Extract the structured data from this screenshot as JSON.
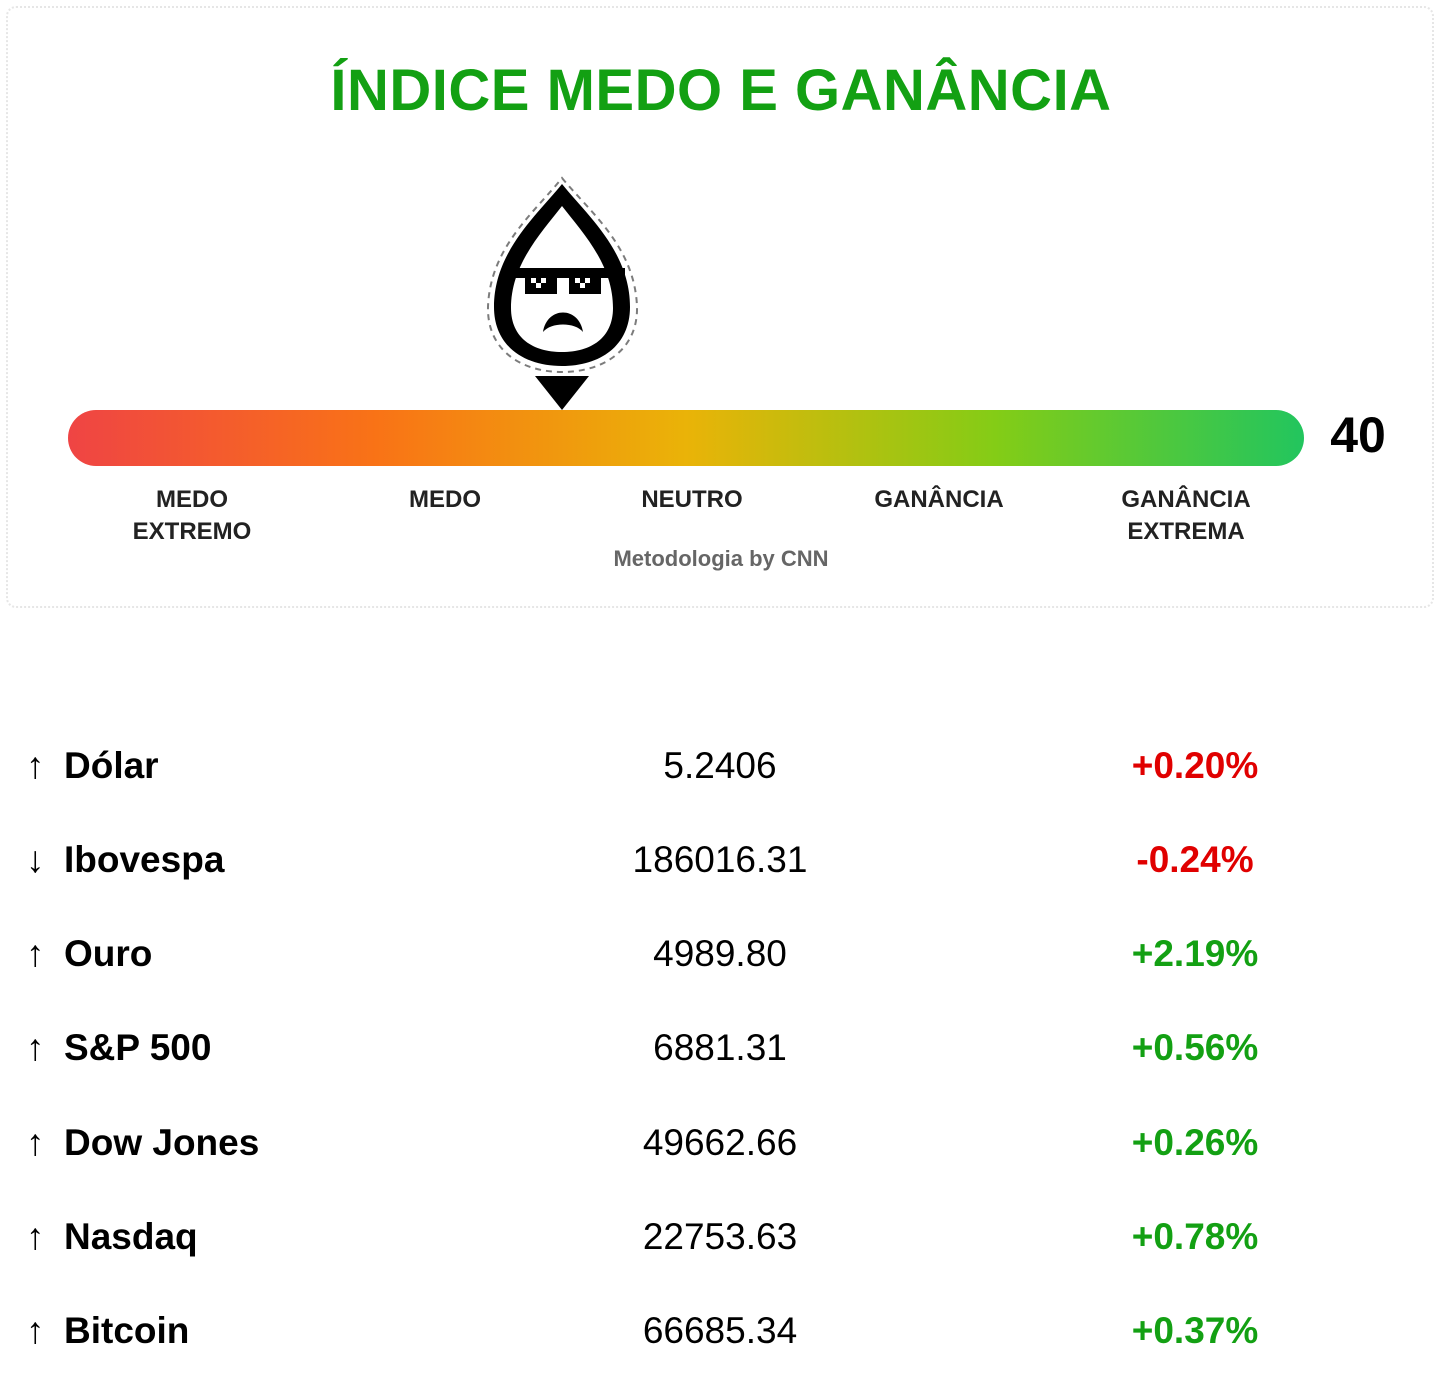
{
  "gauge": {
    "title": "ÍNDICE MEDO E GANÂNCIA",
    "score": "40",
    "score_value": 40,
    "zones": [
      "MEDO\nEXTREMO",
      "MEDO",
      "NEUTRO",
      "GANÂNCIA",
      "GANÂNCIA\nEXTREMA"
    ],
    "credit": "Metodologia by CNN",
    "mascot_icon": "fear-drop-sunglasses-icon",
    "bar_colors": [
      "#ef4444",
      "#f97316",
      "#eab308",
      "#84cc16",
      "#22c55e"
    ]
  },
  "markets": [
    {
      "arrow": "↑",
      "name": "Dólar",
      "value": "5.2406",
      "change": "+0.20%",
      "change_color": "#e00000"
    },
    {
      "arrow": "↓",
      "name": "Ibovespa",
      "value": "186016.31",
      "change": "-0.24%",
      "change_color": "#e00000"
    },
    {
      "arrow": "↑",
      "name": "Ouro",
      "value": "4989.80",
      "change": "+2.19%",
      "change_color": "#13a013"
    },
    {
      "arrow": "↑",
      "name": "S&P 500",
      "value": "6881.31",
      "change": "+0.56%",
      "change_color": "#13a013"
    },
    {
      "arrow": "↑",
      "name": "Dow Jones",
      "value": "49662.66",
      "change": "+0.26%",
      "change_color": "#13a013"
    },
    {
      "arrow": "↑",
      "name": "Nasdaq",
      "value": "22753.63",
      "change": "+0.78%",
      "change_color": "#13a013"
    },
    {
      "arrow": "↑",
      "name": "Bitcoin",
      "value": "66685.34",
      "change": "+0.37%",
      "change_color": "#13a013"
    }
  ]
}
